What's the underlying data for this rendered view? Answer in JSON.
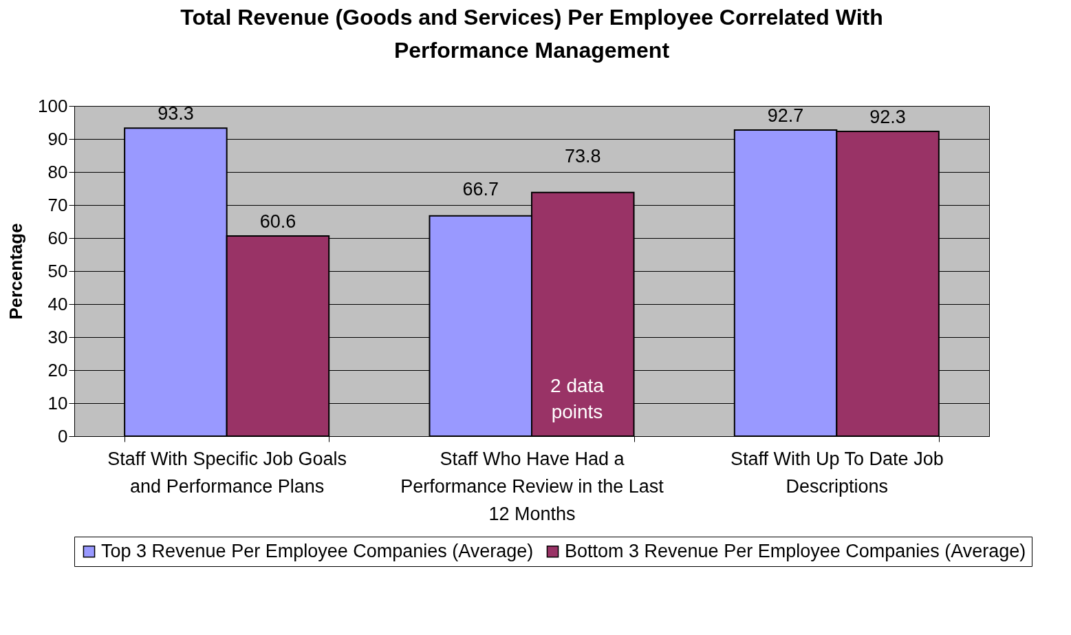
{
  "chart_data": {
    "type": "bar",
    "title": "Total Revenue (Goods and Services) Per Employee Correlated With Performance Management",
    "ylabel": "Percentage",
    "categories": [
      "Staff With Specific Job Goals and Performance Plans",
      "Staff Who Have Had a Performance Review in the Last 12 Months",
      "Staff With Up To Date Job Descriptions"
    ],
    "series": [
      {
        "name": "Top 3 Revenue Per Employee Companies (Average)",
        "color": "#9999ff",
        "values": [
          93.3,
          66.7,
          92.7
        ]
      },
      {
        "name": "Bottom 3 Revenue Per Employee Companies (Average)",
        "color": "#993366",
        "values": [
          60.6,
          73.8,
          92.3
        ]
      }
    ],
    "ylim": [
      0,
      100
    ],
    "yticks": [
      0,
      10,
      20,
      30,
      40,
      50,
      60,
      70,
      80,
      90,
      100
    ],
    "grid": "y",
    "legend": "bottom",
    "data_labels": true,
    "annotations": [
      "2 data points"
    ]
  }
}
